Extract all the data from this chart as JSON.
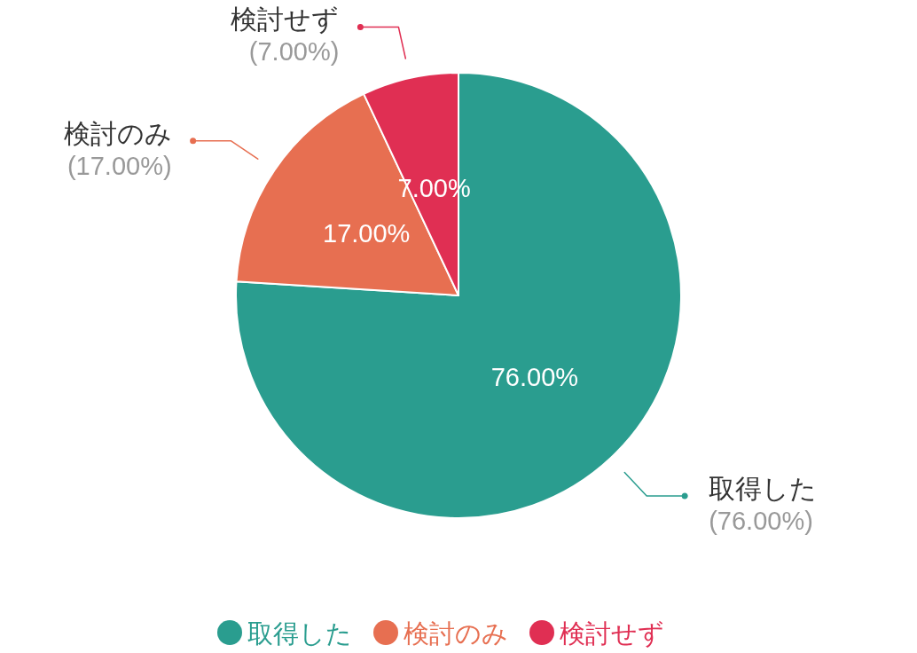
{
  "chart_data": {
    "type": "pie",
    "categories": [
      "取得した",
      "検討のみ",
      "検討せず"
    ],
    "values": [
      76,
      17,
      7
    ],
    "colors": [
      "#2a9d8f",
      "#e76f51",
      "#e02f53"
    ],
    "value_labels": [
      "76.00%",
      "17.00%",
      "7.00%"
    ],
    "annotations": [
      "(76.00%)",
      "(17.00%)",
      "(7.00%)"
    ],
    "legend": "bottom"
  }
}
